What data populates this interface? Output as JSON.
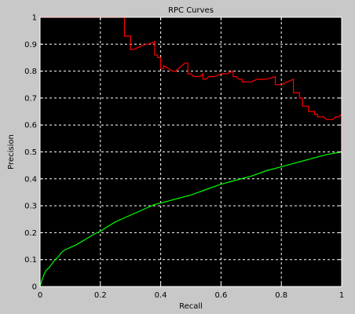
{
  "chart_data": {
    "type": "line",
    "title": "RPC Curves",
    "xlabel": "Recall",
    "ylabel": "Precision",
    "xlim": [
      0,
      1
    ],
    "ylim": [
      0,
      1
    ],
    "grid": true,
    "xticks": [
      0,
      0.2,
      0.4,
      0.6,
      0.8,
      1
    ],
    "yticks": [
      0,
      0.1,
      0.2,
      0.3,
      0.4,
      0.5,
      0.6,
      0.7,
      0.8,
      0.9,
      1
    ],
    "xtick_labels": [
      "0",
      "0.2",
      "0.4",
      "0.6",
      "0.8",
      "1"
    ],
    "ytick_labels": [
      "0",
      "0.1",
      "0.2",
      "0.3",
      "0.4",
      "0.5",
      "0.6",
      "0.7",
      "0.8",
      "0.9",
      "1"
    ],
    "series": [
      {
        "color": "#ff0000",
        "x": [
          0,
          0.28,
          0.28,
          0.3,
          0.3,
          0.31,
          0.33,
          0.35,
          0.36,
          0.38,
          0.38,
          0.39,
          0.39,
          0.4,
          0.4,
          0.41,
          0.41,
          0.44,
          0.45,
          0.48,
          0.49,
          0.49,
          0.5,
          0.51,
          0.53,
          0.54,
          0.54,
          0.55,
          0.56,
          0.58,
          0.6,
          0.62,
          0.64,
          0.64,
          0.65,
          0.66,
          0.67,
          0.67,
          0.7,
          0.72,
          0.75,
          0.78,
          0.78,
          0.79,
          0.8,
          0.82,
          0.84,
          0.84,
          0.85,
          0.86,
          0.86,
          0.87,
          0.87,
          0.88,
          0.89,
          0.89,
          0.9,
          0.91,
          0.91,
          0.92,
          0.92,
          0.93,
          0.94,
          0.95,
          0.96,
          0.97,
          0.98,
          0.99,
          1.0,
          1.0
        ],
        "y": [
          1.0,
          1.0,
          0.93,
          0.93,
          0.88,
          0.88,
          0.89,
          0.9,
          0.9,
          0.91,
          0.86,
          0.86,
          0.85,
          0.85,
          0.81,
          0.81,
          0.82,
          0.8,
          0.8,
          0.83,
          0.83,
          0.79,
          0.79,
          0.78,
          0.78,
          0.79,
          0.77,
          0.77,
          0.78,
          0.78,
          0.79,
          0.79,
          0.8,
          0.78,
          0.78,
          0.77,
          0.77,
          0.76,
          0.76,
          0.77,
          0.77,
          0.78,
          0.75,
          0.75,
          0.75,
          0.76,
          0.77,
          0.72,
          0.72,
          0.72,
          0.7,
          0.7,
          0.67,
          0.67,
          0.67,
          0.65,
          0.65,
          0.65,
          0.64,
          0.64,
          0.63,
          0.63,
          0.63,
          0.62,
          0.62,
          0.62,
          0.63,
          0.63,
          0.64,
          0.5
        ]
      },
      {
        "color": "#00ff00",
        "x": [
          0,
          0.005,
          0.01,
          0.015,
          0.02,
          0.03,
          0.04,
          0.05,
          0.06,
          0.07,
          0.08,
          0.09,
          0.1,
          0.12,
          0.15,
          0.18,
          0.2,
          0.22,
          0.25,
          0.28,
          0.3,
          0.33,
          0.35,
          0.38,
          0.4,
          0.45,
          0.5,
          0.55,
          0.6,
          0.65,
          0.7,
          0.75,
          0.8,
          0.85,
          0.9,
          0.95,
          1.0
        ],
        "y": [
          0,
          0.02,
          0.035,
          0.05,
          0.06,
          0.07,
          0.085,
          0.1,
          0.11,
          0.125,
          0.135,
          0.14,
          0.145,
          0.155,
          0.175,
          0.195,
          0.205,
          0.22,
          0.24,
          0.255,
          0.265,
          0.28,
          0.29,
          0.305,
          0.31,
          0.325,
          0.34,
          0.36,
          0.38,
          0.395,
          0.41,
          0.43,
          0.445,
          0.46,
          0.475,
          0.49,
          0.5
        ]
      }
    ]
  }
}
